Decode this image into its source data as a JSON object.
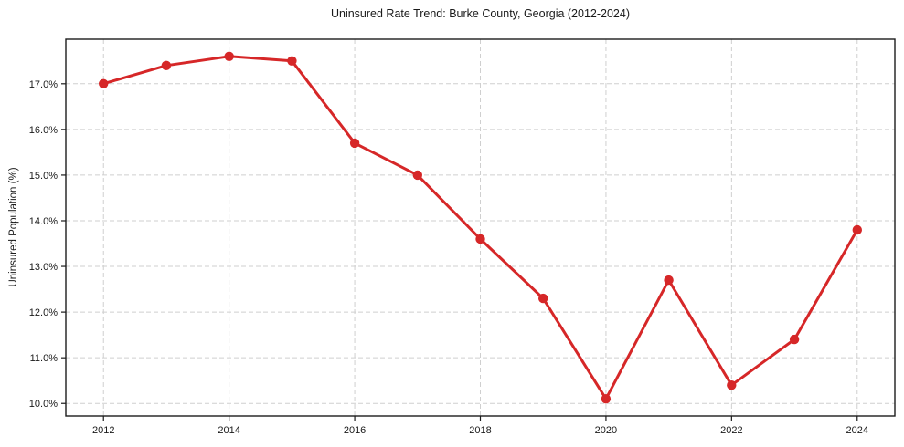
{
  "chart_data": {
    "type": "line",
    "title": "Uninsured Rate Trend: Burke County, Georgia (2012-2024)",
    "xlabel": "",
    "ylabel": "Uninsured Population (%)",
    "x": [
      2012,
      2013,
      2014,
      2015,
      2016,
      2017,
      2018,
      2019,
      2020,
      2021,
      2022,
      2023,
      2024
    ],
    "values": [
      17.0,
      17.4,
      17.6,
      17.5,
      15.7,
      15.0,
      13.6,
      12.3,
      10.1,
      12.7,
      10.4,
      11.4,
      13.8
    ],
    "xlim": [
      2011.4,
      2024.6
    ],
    "ylim": [
      9.725,
      17.975
    ],
    "xticks": [
      2012,
      2014,
      2016,
      2018,
      2020,
      2022,
      2024
    ],
    "xtick_labels": [
      "2012",
      "2014",
      "2016",
      "2018",
      "2020",
      "2022",
      "2024"
    ],
    "yticks": [
      10,
      11,
      12,
      13,
      14,
      15,
      16,
      17
    ],
    "ytick_labels": [
      "10.0%",
      "11.0%",
      "12.0%",
      "13.0%",
      "14.0%",
      "15.0%",
      "16.0%",
      "17.0%"
    ],
    "grid": true,
    "legend": "none",
    "line_color": "#d62728",
    "marker": "o"
  }
}
